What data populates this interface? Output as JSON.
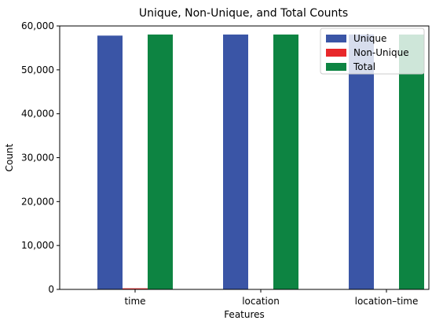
{
  "chart_data": {
    "type": "bar",
    "title": "Unique, Non-Unique, and Total Counts",
    "xlabel": "Features",
    "ylabel": "Count",
    "categories": [
      "time",
      "location",
      "location–time"
    ],
    "series": [
      {
        "name": "Unique",
        "color": "#3a55a6",
        "values": [
          57800,
          58050,
          58050
        ]
      },
      {
        "name": "Non-Unique",
        "color": "#e8272a",
        "values": [
          250,
          0,
          0
        ]
      },
      {
        "name": "Total",
        "color": "#0d8442",
        "values": [
          58050,
          58050,
          58050
        ]
      }
    ],
    "ylim": [
      0,
      60000
    ],
    "yticks": [
      0,
      10000,
      20000,
      30000,
      40000,
      50000,
      60000
    ],
    "ytick_labels": [
      "0",
      "10,000",
      "20,000",
      "30,000",
      "40,000",
      "50,000",
      "60,000"
    ],
    "legend_position": "top-right",
    "grid": false
  }
}
